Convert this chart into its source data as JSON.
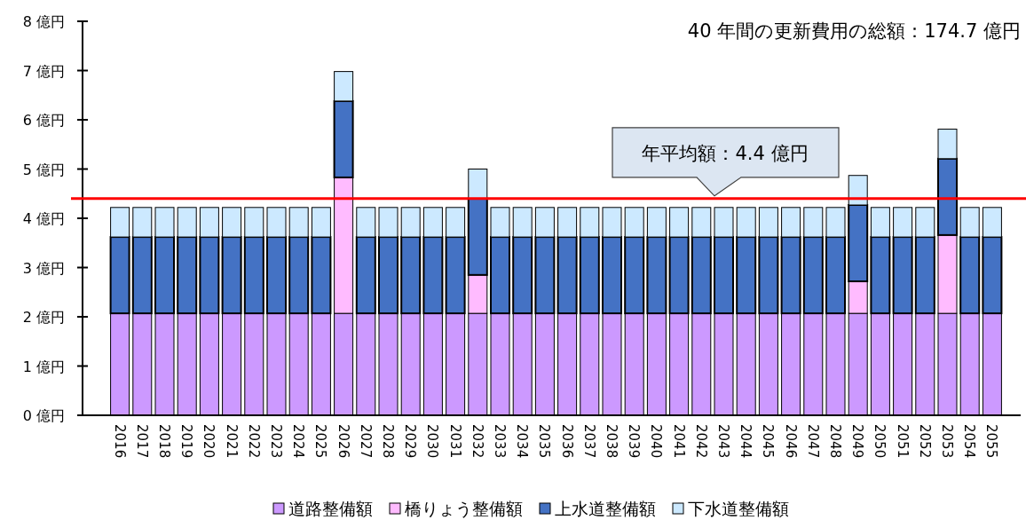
{
  "chart_data": {
    "type": "bar",
    "stacked": true,
    "categories": [
      "2016",
      "2017",
      "2018",
      "2019",
      "2020",
      "2021",
      "2022",
      "2023",
      "2024",
      "2025",
      "2026",
      "2027",
      "2028",
      "2029",
      "2030",
      "2031",
      "2032",
      "2033",
      "2034",
      "2035",
      "2036",
      "2037",
      "2038",
      "2039",
      "2040",
      "2041",
      "2042",
      "2043",
      "2044",
      "2045",
      "2046",
      "2047",
      "2048",
      "2049",
      "2050",
      "2051",
      "2052",
      "2053",
      "2054",
      "2055"
    ],
    "series": [
      {
        "name": "道路整備額",
        "color": "#cc99ff",
        "values": [
          2.07,
          2.07,
          2.07,
          2.07,
          2.07,
          2.07,
          2.07,
          2.07,
          2.07,
          2.07,
          2.07,
          2.07,
          2.07,
          2.07,
          2.07,
          2.07,
          2.07,
          2.07,
          2.07,
          2.07,
          2.07,
          2.07,
          2.07,
          2.07,
          2.07,
          2.07,
          2.07,
          2.07,
          2.07,
          2.07,
          2.07,
          2.07,
          2.07,
          2.07,
          2.07,
          2.07,
          2.07,
          2.07,
          2.07,
          2.07
        ]
      },
      {
        "name": "橋りょう整備額",
        "color": "#ffbbff",
        "values": [
          0,
          0,
          0,
          0,
          0,
          0,
          0,
          0,
          0,
          0,
          2.76,
          0,
          0,
          0,
          0,
          0,
          0.78,
          0,
          0,
          0,
          0,
          0,
          0,
          0,
          0,
          0,
          0,
          0,
          0,
          0,
          0,
          0,
          0,
          0.65,
          0,
          0,
          0,
          1.59,
          0,
          0
        ]
      },
      {
        "name": "上水道整備額",
        "color": "#4472c4",
        "values": [
          1.55,
          1.55,
          1.55,
          1.55,
          1.55,
          1.55,
          1.55,
          1.55,
          1.55,
          1.55,
          1.55,
          1.55,
          1.55,
          1.55,
          1.55,
          1.55,
          1.55,
          1.55,
          1.55,
          1.55,
          1.55,
          1.55,
          1.55,
          1.55,
          1.55,
          1.55,
          1.55,
          1.55,
          1.55,
          1.55,
          1.55,
          1.55,
          1.55,
          1.55,
          1.55,
          1.55,
          1.55,
          1.55,
          1.55,
          1.55
        ]
      },
      {
        "name": "下水道整備額",
        "color": "#cce9ff",
        "values": [
          0.6,
          0.6,
          0.6,
          0.6,
          0.6,
          0.6,
          0.6,
          0.6,
          0.6,
          0.6,
          0.6,
          0.6,
          0.6,
          0.6,
          0.6,
          0.6,
          0.6,
          0.6,
          0.6,
          0.6,
          0.6,
          0.6,
          0.6,
          0.6,
          0.6,
          0.6,
          0.6,
          0.6,
          0.6,
          0.6,
          0.6,
          0.6,
          0.6,
          0.6,
          0.6,
          0.6,
          0.6,
          0.6,
          0.6,
          0.6
        ]
      }
    ],
    "ylim": [
      0,
      8
    ],
    "yticks": [
      {
        "value": 0,
        "label": "0 億円"
      },
      {
        "value": 1,
        "label": "1 億円"
      },
      {
        "value": 2,
        "label": "2 億円"
      },
      {
        "value": 3,
        "label": "3 億円"
      },
      {
        "value": 4,
        "label": "4 億円"
      },
      {
        "value": 5,
        "label": "5 億円"
      },
      {
        "value": 6,
        "label": "6 億円"
      },
      {
        "value": 7,
        "label": "7 億円"
      },
      {
        "value": 8,
        "label": "8 億円"
      }
    ],
    "ref_lines": [
      {
        "axis": "y",
        "value": 4.4,
        "label": "年平均額：4.4 億円",
        "color": "#ff0000"
      }
    ],
    "annotations": [
      "40 年間の更新費用の総額：174.7 億円"
    ],
    "legend": "bottom"
  }
}
